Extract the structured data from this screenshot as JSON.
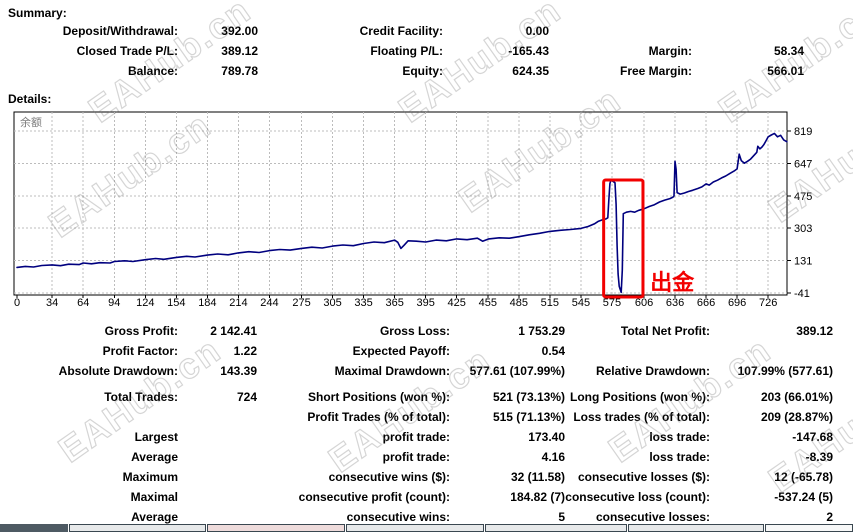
{
  "watermark": "EAHub.cn",
  "summary": {
    "title": "Summary:",
    "rows": [
      [
        [
          "Deposit/Withdrawal:",
          "392.00"
        ],
        [
          "Credit Facility:",
          "0.00"
        ],
        [
          "",
          ""
        ]
      ],
      [
        [
          "Closed Trade P/L:",
          "389.12"
        ],
        [
          "Floating P/L:",
          "-165.43"
        ],
        [
          "Margin:",
          "58.34"
        ]
      ],
      [
        [
          "Balance:",
          "789.78"
        ],
        [
          "Equity:",
          "624.35"
        ],
        [
          "Free Margin:",
          "566.01"
        ]
      ]
    ]
  },
  "details": {
    "title": "Details:"
  },
  "chart_data": {
    "type": "line",
    "series_label": "余额",
    "line_color": "#00007f",
    "grid": "dashed",
    "legend_position": "none",
    "x_ticks": [
      0,
      34,
      64,
      94,
      124,
      154,
      184,
      214,
      244,
      275,
      305,
      335,
      365,
      395,
      425,
      455,
      485,
      515,
      545,
      575,
      606,
      636,
      666,
      696,
      726
    ],
    "y_ticks": [
      819,
      647,
      475,
      303,
      131,
      -41
    ],
    "ylim": [
      -41,
      819
    ],
    "xlim": [
      0,
      744
    ],
    "annotations": {
      "box": {
        "x1": 567,
        "x2": 605,
        "y1": -62,
        "y2": 559,
        "color": "#f20000"
      },
      "label": {
        "text": "出金",
        "x": 612,
        "y": -25,
        "color": "#f20000"
      }
    },
    "series": [
      {
        "name": "余额",
        "points": [
          [
            0,
            95
          ],
          [
            8,
            100
          ],
          [
            16,
            97
          ],
          [
            24,
            105
          ],
          [
            34,
            108
          ],
          [
            42,
            104
          ],
          [
            50,
            112
          ],
          [
            60,
            110
          ],
          [
            64,
            118
          ],
          [
            72,
            114
          ],
          [
            80,
            120
          ],
          [
            90,
            118
          ],
          [
            94,
            126
          ],
          [
            104,
            130
          ],
          [
            112,
            126
          ],
          [
            124,
            136
          ],
          [
            134,
            142
          ],
          [
            142,
            138
          ],
          [
            154,
            148
          ],
          [
            164,
            154
          ],
          [
            172,
            150
          ],
          [
            184,
            160
          ],
          [
            194,
            166
          ],
          [
            204,
            162
          ],
          [
            214,
            172
          ],
          [
            224,
            178
          ],
          [
            234,
            174
          ],
          [
            244,
            184
          ],
          [
            254,
            190
          ],
          [
            264,
            187
          ],
          [
            275,
            196
          ],
          [
            285,
            202
          ],
          [
            295,
            198
          ],
          [
            305,
            208
          ],
          [
            315,
            214
          ],
          [
            325,
            210
          ],
          [
            335,
            222
          ],
          [
            345,
            230
          ],
          [
            355,
            226
          ],
          [
            365,
            240
          ],
          [
            368,
            228
          ],
          [
            371,
            196
          ],
          [
            374,
            212
          ],
          [
            378,
            236
          ],
          [
            386,
            234
          ],
          [
            395,
            230
          ],
          [
            405,
            240
          ],
          [
            415,
            236
          ],
          [
            425,
            246
          ],
          [
            435,
            242
          ],
          [
            445,
            250
          ],
          [
            450,
            234
          ],
          [
            456,
            246
          ],
          [
            466,
            252
          ],
          [
            476,
            250
          ],
          [
            485,
            258
          ],
          [
            495,
            268
          ],
          [
            505,
            276
          ],
          [
            515,
            286
          ],
          [
            525,
            292
          ],
          [
            535,
            296
          ],
          [
            545,
            302
          ],
          [
            552,
            312
          ],
          [
            558,
            326
          ],
          [
            562,
            340
          ],
          [
            566,
            348
          ],
          [
            569,
            352
          ],
          [
            571,
            358
          ],
          [
            572,
            450
          ],
          [
            573,
            540
          ],
          [
            574,
            558
          ],
          [
            576,
            552
          ],
          [
            578,
            544
          ],
          [
            579,
            430
          ],
          [
            580,
            210
          ],
          [
            581,
            60
          ],
          [
            582,
            -5
          ],
          [
            583,
            -22
          ],
          [
            584,
            -38
          ],
          [
            585,
            80
          ],
          [
            586,
            380
          ],
          [
            589,
            388
          ],
          [
            593,
            392
          ],
          [
            597,
            388
          ],
          [
            601,
            398
          ],
          [
            606,
            406
          ],
          [
            611,
            418
          ],
          [
            616,
            428
          ],
          [
            621,
            442
          ],
          [
            626,
            452
          ],
          [
            631,
            460
          ],
          [
            634,
            468
          ],
          [
            635,
            474
          ],
          [
            636,
            658
          ],
          [
            637,
            615
          ],
          [
            638,
            492
          ],
          [
            641,
            484
          ],
          [
            645,
            490
          ],
          [
            649,
            498
          ],
          [
            653,
            504
          ],
          [
            658,
            514
          ],
          [
            662,
            522
          ],
          [
            666,
            538
          ],
          [
            669,
            532
          ],
          [
            673,
            548
          ],
          [
            677,
            558
          ],
          [
            681,
            570
          ],
          [
            685,
            580
          ],
          [
            689,
            594
          ],
          [
            693,
            606
          ],
          [
            696,
            618
          ],
          [
            698,
            696
          ],
          [
            700,
            662
          ],
          [
            703,
            648
          ],
          [
            706,
            658
          ],
          [
            709,
            670
          ],
          [
            712,
            688
          ],
          [
            715,
            706
          ],
          [
            716,
            738
          ],
          [
            718,
            724
          ],
          [
            720,
            734
          ],
          [
            722,
            748
          ],
          [
            724,
            768
          ],
          [
            726,
            788
          ],
          [
            729,
            798
          ],
          [
            732,
            806
          ],
          [
            735,
            788
          ],
          [
            738,
            796
          ],
          [
            741,
            772
          ],
          [
            744,
            762
          ]
        ]
      }
    ]
  },
  "stats": {
    "rows": [
      [
        [
          "Gross Profit:",
          "2 142.41"
        ],
        [
          "Gross Loss:",
          "1 753.29"
        ],
        [
          "Total Net Profit:",
          "389.12"
        ]
      ],
      [
        [
          "Profit Factor:",
          "1.22"
        ],
        [
          "Expected Payoff:",
          "0.54"
        ],
        [
          "",
          ""
        ]
      ],
      [
        [
          "Absolute Drawdown:",
          "143.39"
        ],
        [
          "Maximal Drawdown:",
          "577.61 (107.99%)"
        ],
        [
          "Relative Drawdown:",
          "107.99% (577.61)"
        ]
      ],
      [
        [
          "Total Trades:",
          "724"
        ],
        [
          "Short Positions (won %):",
          "521 (73.13%)"
        ],
        [
          "Long Positions (won %):",
          "203 (66.01%)"
        ]
      ],
      [
        [
          "",
          ""
        ],
        [
          "Profit Trades (% of total):",
          "515 (71.13%)"
        ],
        [
          "Loss trades (% of total):",
          "209 (28.87%)"
        ]
      ],
      [
        [
          "Largest",
          ""
        ],
        [
          "profit trade:",
          "173.40"
        ],
        [
          "loss trade:",
          "-147.68"
        ]
      ],
      [
        [
          "Average",
          ""
        ],
        [
          "profit trade:",
          "4.16"
        ],
        [
          "loss trade:",
          "-8.39"
        ]
      ],
      [
        [
          "Maximum",
          ""
        ],
        [
          "consecutive wins ($):",
          "32 (11.58)"
        ],
        [
          "consecutive losses ($):",
          "12 (-65.78)"
        ]
      ],
      [
        [
          "Maximal",
          ""
        ],
        [
          "consecutive profit (count):",
          "184.82 (7)"
        ],
        [
          "consecutive loss (count):",
          "-537.24 (5)"
        ]
      ],
      [
        [
          "Average",
          ""
        ],
        [
          "consecutive wins:",
          "5"
        ],
        [
          "consecutive losses:",
          "2"
        ]
      ]
    ]
  },
  "bottom_table_strip": {
    "cells": [
      {
        "x": 0,
        "w": 68,
        "color": "#4e5a63",
        "bordered": false
      },
      {
        "x": 69,
        "w": 137,
        "color": "#e7e9ea",
        "bordered": true
      },
      {
        "x": 207,
        "w": 138,
        "color": "#eedbdb",
        "bordered": true
      },
      {
        "x": 346,
        "w": 138,
        "color": "#e7e9ea",
        "bordered": true
      },
      {
        "x": 485,
        "w": 142,
        "color": "#e7e9ea",
        "bordered": true
      },
      {
        "x": 628,
        "w": 136,
        "color": "#e7e9ea",
        "bordered": true
      },
      {
        "x": 765,
        "w": 88,
        "color": "#f7f8f8",
        "bordered": true
      }
    ],
    "border_color": "#3a4750"
  }
}
